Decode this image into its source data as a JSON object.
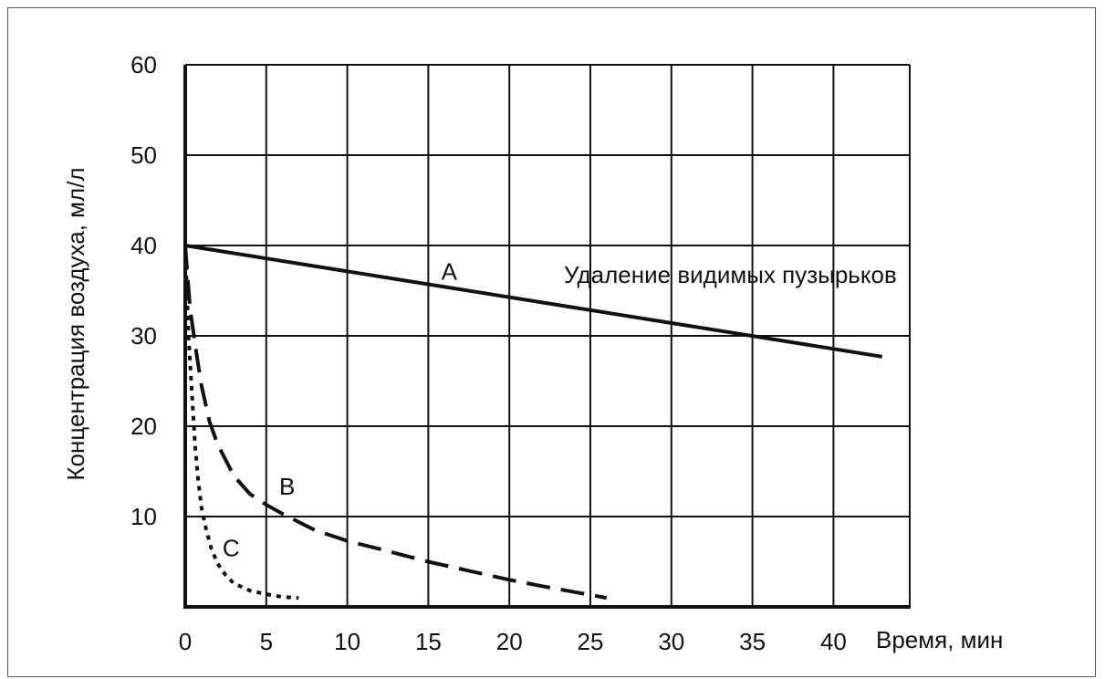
{
  "chart_data": {
    "type": "line",
    "xlabel": "Время, мин",
    "ylabel": "Концентрация воздуха, мл/л",
    "xlim": [
      0,
      45
    ],
    "ylim": [
      0,
      60
    ],
    "x_ticks": [
      0,
      5,
      10,
      15,
      20,
      25,
      30,
      35,
      40
    ],
    "y_ticks": [
      10,
      20,
      30,
      40,
      50,
      60
    ],
    "grid": true,
    "annotation": "Удаление видимых пузырьков",
    "series": [
      {
        "name": "A",
        "style": "solid",
        "x": [
          0,
          43
        ],
        "y": [
          40,
          27.7
        ]
      },
      {
        "name": "B",
        "style": "dashed",
        "x": [
          0,
          0.3,
          0.7,
          1,
          1.5,
          2,
          3,
          4,
          5,
          6,
          8,
          10,
          12,
          15,
          18,
          20,
          22,
          26
        ],
        "y": [
          40,
          33,
          28,
          24.5,
          20.5,
          18,
          14.5,
          12.5,
          11.3,
          10.3,
          8.5,
          7.3,
          6.4,
          5,
          3.8,
          3,
          2.3,
          1
        ]
      },
      {
        "name": "C",
        "style": "dotted",
        "x": [
          0,
          0.2,
          0.4,
          0.6,
          0.8,
          1,
          1.3,
          1.6,
          2,
          2.5,
          3,
          4,
          5,
          6,
          7
        ],
        "y": [
          40,
          30,
          24,
          18,
          14,
          11,
          8.5,
          6.5,
          4.8,
          3.5,
          2.6,
          1.8,
          1.4,
          1.1,
          1.0
        ]
      }
    ]
  }
}
